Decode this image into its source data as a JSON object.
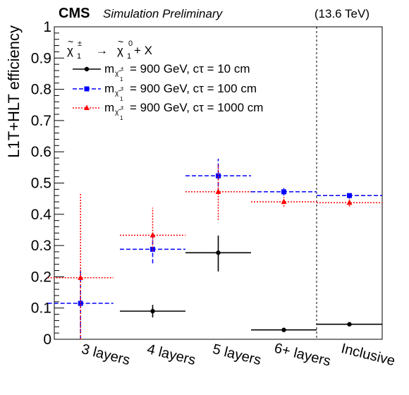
{
  "header": {
    "experiment": "CMS",
    "status": "Simulation Preliminary",
    "energy": "(13.6 TeV)"
  },
  "legend": {
    "process": {
      "left": "χ",
      "left_sup": "±",
      "left_sub": "1",
      "arrow": "→",
      "right": "χ",
      "right_sup": "0",
      "right_sub": "1",
      "tail": "+ X"
    },
    "entries": [
      {
        "m": "m",
        "sub": "χ̃",
        "subsub": "±",
        "subidx": "1",
        "text": "= 900 GeV, cτ = 10 cm",
        "style": "solid",
        "color": "#000000",
        "marker": "circle"
      },
      {
        "m": "m",
        "sub": "χ̃",
        "subsub": "±",
        "subidx": "1",
        "text": "= 900 GeV, cτ = 100 cm",
        "style": "dashed",
        "color": "#0000ff",
        "marker": "square"
      },
      {
        "m": "m",
        "sub": "χ̃",
        "subsub": "±",
        "subidx": "1",
        "text": "= 900 GeV, cτ = 1000 cm",
        "style": "dotted",
        "color": "#ff0000",
        "marker": "triangle"
      }
    ]
  },
  "chart_data": {
    "type": "scatter",
    "ylabel": "L1T+HLT efficiency",
    "ylim": [
      0,
      1
    ],
    "yticks": [
      0,
      0.1,
      0.2,
      0.3,
      0.4,
      0.5,
      0.6,
      0.7,
      0.8,
      0.9,
      1
    ],
    "ytick_labels": [
      "0",
      "0.1",
      "0.2",
      "0.3",
      "0.4",
      "0.5",
      "0.6",
      "0.7",
      "0.8",
      "0.9",
      "1"
    ],
    "categories": [
      "3 layers",
      "4 layers",
      "5 layers",
      "6+ layers",
      "Inclusive"
    ],
    "separator_after_category": 3,
    "series": [
      {
        "values": [
          null,
          0.09,
          0.277,
          0.03,
          0.048
        ],
        "err_low": [
          null,
          0.02,
          0.06,
          0.003,
          0.003
        ],
        "err_high": [
          null,
          0.02,
          0.055,
          0.003,
          0.003
        ],
        "x_start": [
          null,
          0.0,
          0.0,
          0.0,
          0.0
        ],
        "x_end": [
          null,
          1.0,
          1.0,
          1.0,
          1.0
        ],
        "color": "#000000",
        "line": "solid",
        "marker": "circle"
      },
      {
        "values": [
          0.115,
          0.288,
          0.523,
          0.472,
          0.46
        ],
        "err_low": [
          0.115,
          0.045,
          0.055,
          0.012,
          0.01
        ],
        "err_high": [
          0.11,
          0.045,
          0.055,
          0.012,
          0.01
        ],
        "x_start": [
          -0.1,
          0.0,
          0.0,
          0.0,
          0.0
        ],
        "x_end": [
          0.9,
          1.0,
          1.0,
          1.0,
          1.0
        ],
        "color": "#0000ff",
        "line": "dashed",
        "marker": "square"
      },
      {
        "values": [
          0.197,
          0.333,
          0.472,
          0.44,
          0.437
        ],
        "err_low": [
          0.197,
          0.05,
          0.09,
          0.015,
          0.012
        ],
        "err_high": [
          0.268,
          0.088,
          0.09,
          0.015,
          0.012
        ],
        "x_start": [
          -0.1,
          0.0,
          0.0,
          0.0,
          0.0
        ],
        "x_end": [
          0.9,
          1.0,
          1.0,
          1.0,
          1.0
        ],
        "color": "#ff0000",
        "line": "dotted",
        "marker": "triangle"
      }
    ]
  }
}
